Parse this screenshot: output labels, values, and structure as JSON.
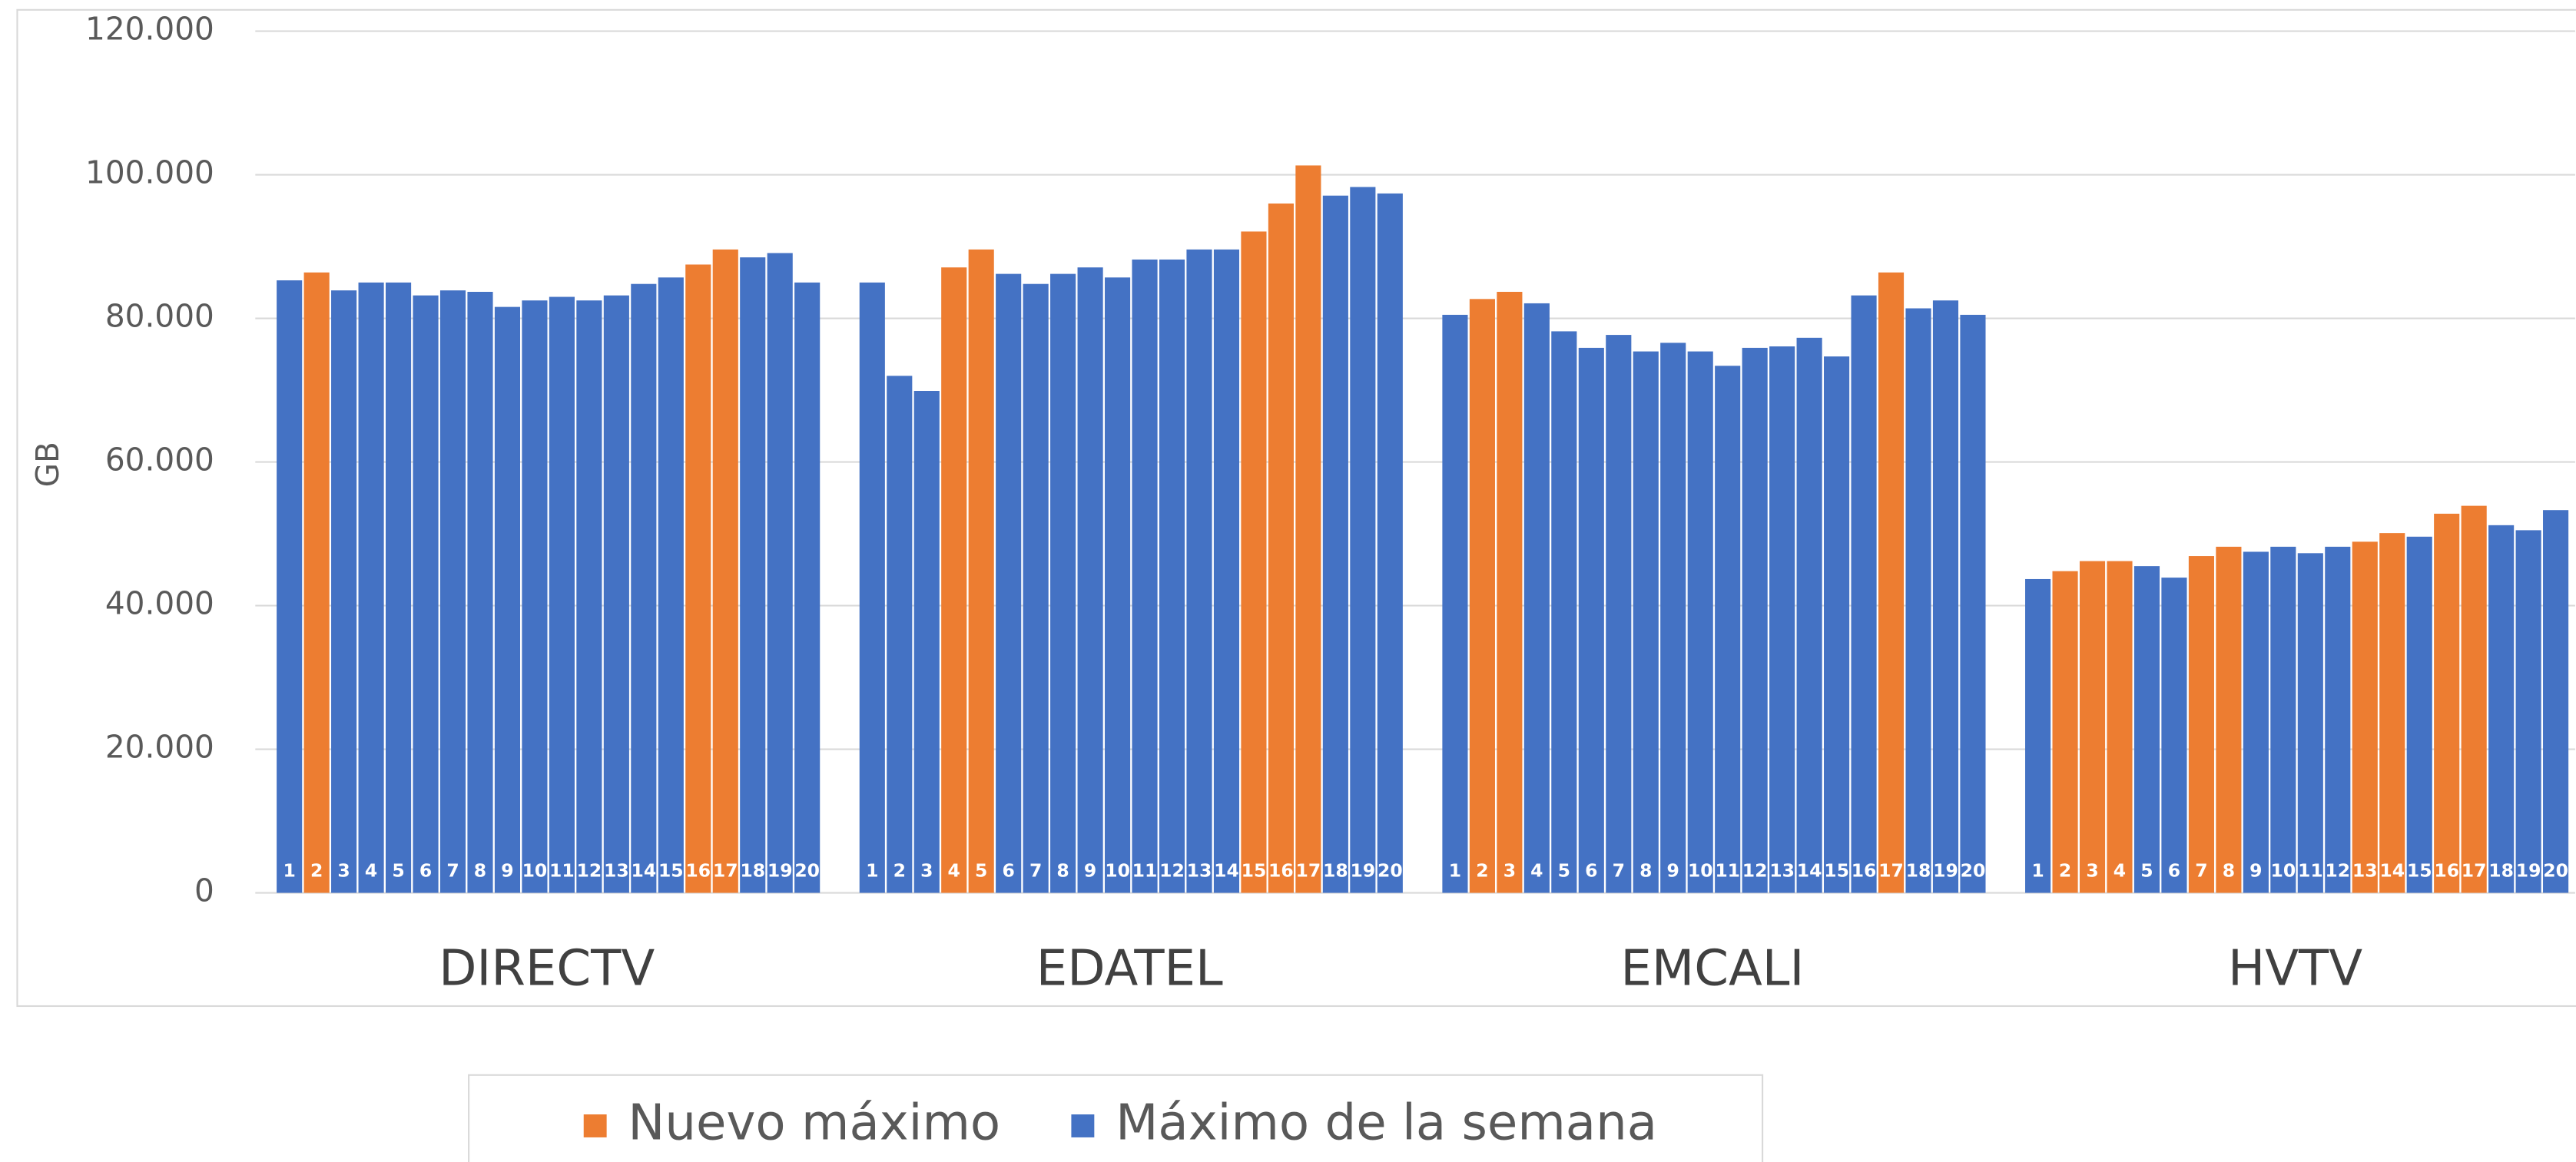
{
  "chart_data": {
    "type": "grouped-bar",
    "y_label": "GB",
    "ylim": [
      0,
      120000
    ],
    "yticks": [
      {
        "value": 0,
        "label": "0"
      },
      {
        "value": 20000,
        "label": "20.000"
      },
      {
        "value": 40000,
        "label": "40.000"
      },
      {
        "value": 60000,
        "label": "60.000"
      },
      {
        "value": 80000,
        "label": "80.000"
      },
      {
        "value": 100000,
        "label": "100.000"
      },
      {
        "value": 120000,
        "label": "120.000"
      }
    ],
    "grid": true,
    "series": [
      {
        "name": "Nuevo máximo",
        "color": "#ed7d31"
      },
      {
        "name": "Máximo de la semana",
        "color": "#4472c4"
      }
    ],
    "groups": [
      {
        "name": "DIRECTV",
        "bar_labels": [
          1,
          2,
          3,
          4,
          5,
          6,
          7,
          8,
          9,
          10,
          11,
          12,
          13,
          14,
          15,
          16,
          17,
          18,
          19,
          20
        ],
        "values": [
          85300,
          86400,
          83900,
          85000,
          85000,
          83200,
          83900,
          83700,
          81600,
          82500,
          83000,
          82500,
          83200,
          84800,
          85700,
          87500,
          89600,
          88500,
          89100,
          85000
        ],
        "series_index": [
          1,
          0,
          1,
          1,
          1,
          1,
          1,
          1,
          1,
          1,
          1,
          1,
          1,
          1,
          1,
          0,
          0,
          1,
          1,
          1
        ]
      },
      {
        "name": "EDATEL",
        "bar_labels": [
          1,
          2,
          3,
          4,
          5,
          6,
          7,
          8,
          9,
          10,
          11,
          12,
          13,
          14,
          15,
          16,
          17,
          18,
          19,
          20
        ],
        "values": [
          85000,
          72000,
          69900,
          87100,
          89600,
          86200,
          84800,
          86200,
          87100,
          85700,
          88200,
          88200,
          89600,
          89600,
          92100,
          96000,
          101300,
          97100,
          98300,
          97400
        ],
        "series_index": [
          1,
          1,
          1,
          0,
          0,
          1,
          1,
          1,
          1,
          1,
          1,
          1,
          1,
          1,
          0,
          0,
          0,
          1,
          1,
          1
        ]
      },
      {
        "name": "EMCALI",
        "bar_labels": [
          1,
          2,
          3,
          4,
          5,
          6,
          7,
          8,
          9,
          10,
          11,
          12,
          13,
          14,
          15,
          16,
          17,
          18,
          19,
          20
        ],
        "values": [
          80500,
          82700,
          83700,
          82100,
          78200,
          75900,
          77700,
          75400,
          76600,
          75400,
          73400,
          75900,
          76100,
          77300,
          74700,
          83200,
          86400,
          81400,
          82500,
          80500
        ],
        "series_index": [
          1,
          0,
          0,
          1,
          1,
          1,
          1,
          1,
          1,
          1,
          1,
          1,
          1,
          1,
          1,
          1,
          0,
          1,
          1,
          1
        ]
      },
      {
        "name": "HVTV",
        "bar_labels": [
          1,
          2,
          3,
          4,
          5,
          6,
          7,
          8,
          9,
          10,
          11,
          12,
          13,
          14,
          15,
          16,
          17,
          18,
          19,
          20
        ],
        "values": [
          43700,
          44800,
          46200,
          46200,
          45500,
          43900,
          46900,
          48200,
          47500,
          48200,
          47300,
          48200,
          48900,
          50100,
          49600,
          52800,
          53900,
          51200,
          50500,
          53300
        ],
        "series_index": [
          1,
          0,
          0,
          0,
          1,
          1,
          0,
          0,
          1,
          1,
          1,
          1,
          0,
          0,
          1,
          0,
          0,
          1,
          1,
          1
        ]
      }
    ]
  }
}
